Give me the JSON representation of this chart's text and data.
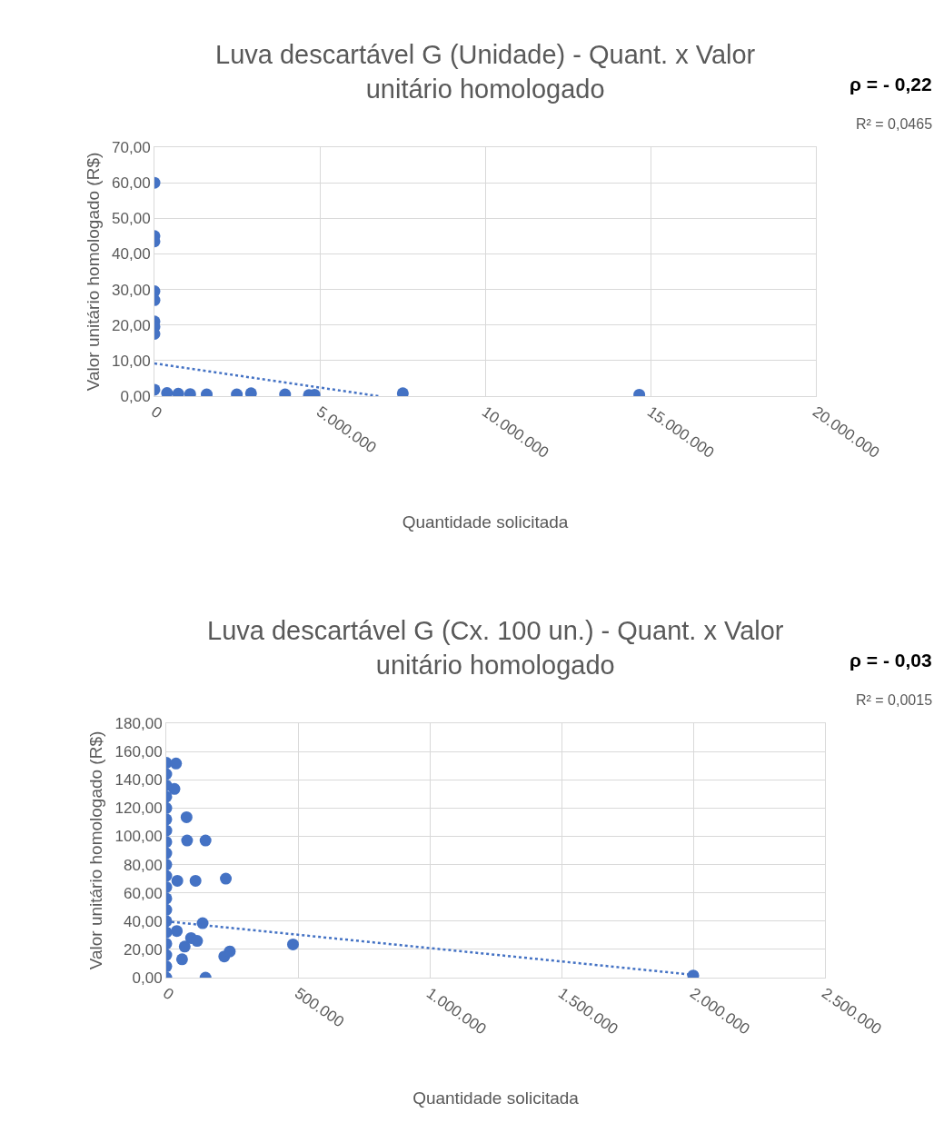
{
  "chart_data": [
    {
      "type": "scatter",
      "title": "Luva descartável G (Unidade) - Quant. x Valor\nunitário homologado",
      "xlabel": "Quantidade solicitada",
      "ylabel": "Valor unitário homologado (R$)",
      "annotations": [
        "ρ = - 0,22",
        "R² = 0,0465"
      ],
      "grid": true,
      "xlim": [
        0,
        20000000
      ],
      "xticks": [
        {
          "value": 0,
          "label": "0"
        },
        {
          "value": 5000000,
          "label": "5.000.000"
        },
        {
          "value": 10000000,
          "label": "10.000.000"
        },
        {
          "value": 15000000,
          "label": "15.000.000"
        },
        {
          "value": 20000000,
          "label": "20.000.000"
        }
      ],
      "ylim": [
        0,
        70
      ],
      "yticks": [
        {
          "value": 0,
          "label": "0,00"
        },
        {
          "value": 10,
          "label": "10,00"
        },
        {
          "value": 20,
          "label": "20,00"
        },
        {
          "value": 30,
          "label": "30,00"
        },
        {
          "value": 40,
          "label": "40,00"
        },
        {
          "value": 50,
          "label": "50,00"
        },
        {
          "value": 60,
          "label": "60,00"
        },
        {
          "value": 70,
          "label": "70,00"
        }
      ],
      "series": [
        {
          "marker": "circle",
          "color": "#4472c4",
          "x": [
            0,
            0,
            0,
            0,
            0,
            0,
            0,
            0,
            0,
            380000,
            720000,
            1080000,
            1580000,
            2490000,
            2920000,
            3950000,
            4670000,
            4840000,
            7510000,
            14660000
          ],
          "values": [
            60,
            45,
            43.5,
            29.5,
            27,
            21,
            19.5,
            17.5,
            1.8,
            0.9,
            0.7,
            0.6,
            0.5,
            0.5,
            0.8,
            0.5,
            0.3,
            0.4,
            0.8,
            0.4
          ]
        },
        {
          "type": "line",
          "line_style": "dotted",
          "color": "#4472c4",
          "x": [
            0,
            6780000
          ],
          "values": [
            9.2,
            0
          ]
        }
      ]
    },
    {
      "type": "scatter",
      "title": "Luva descartável G (Cx. 100 un.) - Quant. x Valor\nunitário homologado",
      "xlabel": "Quantidade solicitada",
      "ylabel": "Valor unitário homologado (R$)",
      "annotations": [
        "ρ = - 0,03",
        "R² = 0,0015"
      ],
      "grid": true,
      "xlim": [
        0,
        2500000
      ],
      "xticks": [
        {
          "value": 0,
          "label": "0"
        },
        {
          "value": 500000,
          "label": "500.000"
        },
        {
          "value": 1000000,
          "label": "1.000.000"
        },
        {
          "value": 1500000,
          "label": "1.500.000"
        },
        {
          "value": 2000000,
          "label": "2.000.000"
        },
        {
          "value": 2500000,
          "label": "2.500.000"
        }
      ],
      "ylim": [
        0,
        180
      ],
      "yticks": [
        {
          "value": 0,
          "label": "0,00"
        },
        {
          "value": 20,
          "label": "20,00"
        },
        {
          "value": 40,
          "label": "40,00"
        },
        {
          "value": 60,
          "label": "60,00"
        },
        {
          "value": 80,
          "label": "80,00"
        },
        {
          "value": 100,
          "label": "100,00"
        },
        {
          "value": 120,
          "label": "120,00"
        },
        {
          "value": 140,
          "label": "140,00"
        },
        {
          "value": 160,
          "label": "160,00"
        },
        {
          "value": 180,
          "label": "180,00"
        }
      ],
      "series": [
        {
          "marker": "circle",
          "color": "#4472c4",
          "x": [
            0,
            0,
            0,
            0,
            0,
            0,
            0,
            0,
            0,
            0,
            0,
            0,
            0,
            0,
            0,
            0,
            0,
            0,
            0,
            0,
            37000,
            31000,
            77000,
            79000,
            149000,
            42000,
            111000,
            226000,
            138000,
            220000,
            241000,
            481000,
            149000,
            94000,
            117000,
            60000,
            40000,
            70000,
            2000000
          ],
          "values": [
            0,
            8,
            16,
            24,
            32,
            40,
            48,
            56,
            64,
            72,
            80,
            88,
            96,
            104,
            112,
            120,
            128,
            136,
            144,
            152,
            151.5,
            133.5,
            113.5,
            97,
            97,
            68.5,
            68.5,
            70,
            38.5,
            15,
            18.5,
            23.5,
            0,
            28,
            26,
            13,
            33,
            22,
            1.5
          ]
        },
        {
          "type": "line",
          "line_style": "dotted",
          "color": "#4472c4",
          "x": [
            0,
            2000000
          ],
          "values": [
            39.8,
            2.0
          ]
        }
      ]
    }
  ]
}
